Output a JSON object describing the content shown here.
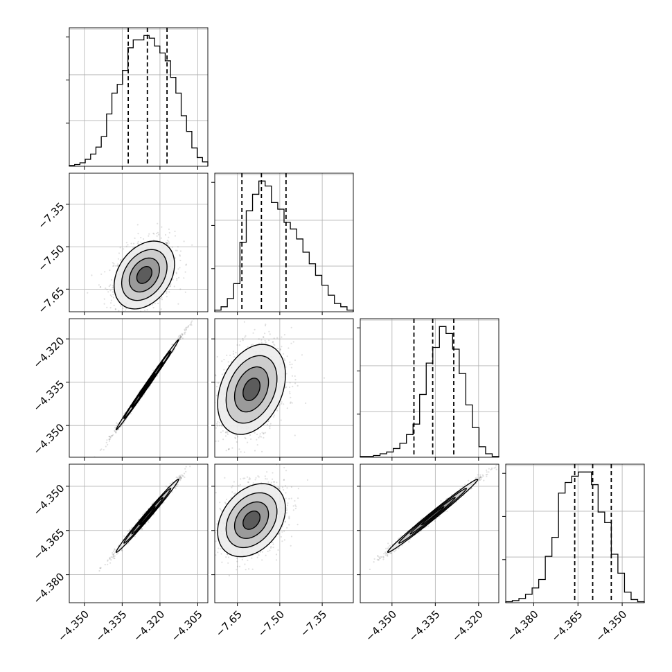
{
  "chart_data": {
    "type": "corner",
    "title": "",
    "parameters": [
      {
        "ticks": [
          -4.35,
          -4.335,
          -4.32,
          -4.305
        ],
        "tick_labels": [
          "−4.350",
          "−4.335",
          "−4.320",
          "−4.305"
        ],
        "range": [
          -4.356,
          -4.301
        ],
        "quantiles": [
          -4.3326,
          -4.325,
          -4.3172
        ]
      },
      {
        "ticks": [
          -7.65,
          -7.5,
          -7.35
        ],
        "tick_labels": [
          "−7.65",
          "−7.50",
          "−7.35"
        ],
        "range": [
          -7.73,
          -7.24
        ],
        "quantiles": [
          -7.634,
          -7.565,
          -7.478
        ]
      },
      {
        "ticks": [
          -4.35,
          -4.335,
          -4.32
        ],
        "tick_labels": [
          "−4.350",
          "−4.335",
          "−4.320"
        ],
        "range": [
          -4.361,
          -4.313
        ],
        "quantiles": [
          -4.3424,
          -4.3359,
          -4.3286
        ]
      },
      {
        "ticks": [
          -4.38,
          -4.365,
          -4.35
        ],
        "tick_labels": [
          "−4.380",
          "−4.365",
          "−4.350"
        ],
        "range": [
          -4.3895,
          -4.3425
        ],
        "quantiles": [
          -4.3661,
          -4.36,
          -4.3537
        ]
      }
    ],
    "histograms": [
      [
        1,
        2,
        4,
        8,
        14,
        22,
        34,
        60,
        84,
        94,
        110,
        136,
        145,
        145,
        150,
        147,
        138,
        130,
        121,
        102,
        84,
        58,
        40,
        21,
        10,
        5
      ],
      [
        2,
        6,
        16,
        34,
        84,
        122,
        142,
        158,
        152,
        132,
        124,
        108,
        100,
        88,
        72,
        58,
        44,
        32,
        20,
        10,
        6,
        2
      ],
      [
        1,
        1,
        2,
        4,
        6,
        10,
        16,
        26,
        38,
        72,
        108,
        126,
        150,
        142,
        124,
        96,
        60,
        34,
        12,
        4,
        1
      ],
      [
        1,
        2,
        4,
        8,
        14,
        22,
        44,
        62,
        104,
        114,
        120,
        124,
        124,
        112,
        86,
        76,
        46,
        28,
        10,
        3,
        1
      ]
    ],
    "pairs": [
      {
        "row": 1,
        "col": 0,
        "center": [
          -4.3262,
          -7.6
        ],
        "sd": [
          0.006,
          0.06
        ],
        "rho": 0.32
      },
      {
        "row": 2,
        "col": 0,
        "center": [
          -4.325,
          -4.3359
        ],
        "sd": [
          0.0062,
          0.0078
        ],
        "rho": 0.997
      },
      {
        "row": 2,
        "col": 1,
        "center": [
          -7.6,
          -4.3375
        ],
        "sd": [
          0.06,
          0.0078
        ],
        "rho": 0.32
      },
      {
        "row": 3,
        "col": 0,
        "center": [
          -4.325,
          -4.36
        ],
        "sd": [
          0.0062,
          0.0062
        ],
        "rho": 0.992
      },
      {
        "row": 3,
        "col": 1,
        "center": [
          -7.6,
          -4.3615
        ],
        "sd": [
          0.06,
          0.0062
        ],
        "rho": 0.32
      },
      {
        "row": 3,
        "col": 2,
        "center": [
          -4.3359,
          -4.36
        ],
        "sd": [
          0.0078,
          0.0062
        ],
        "rho": 0.992
      }
    ],
    "contour_levels": [
      0.5,
      1.0,
      1.5,
      2.0
    ],
    "grid": true
  }
}
